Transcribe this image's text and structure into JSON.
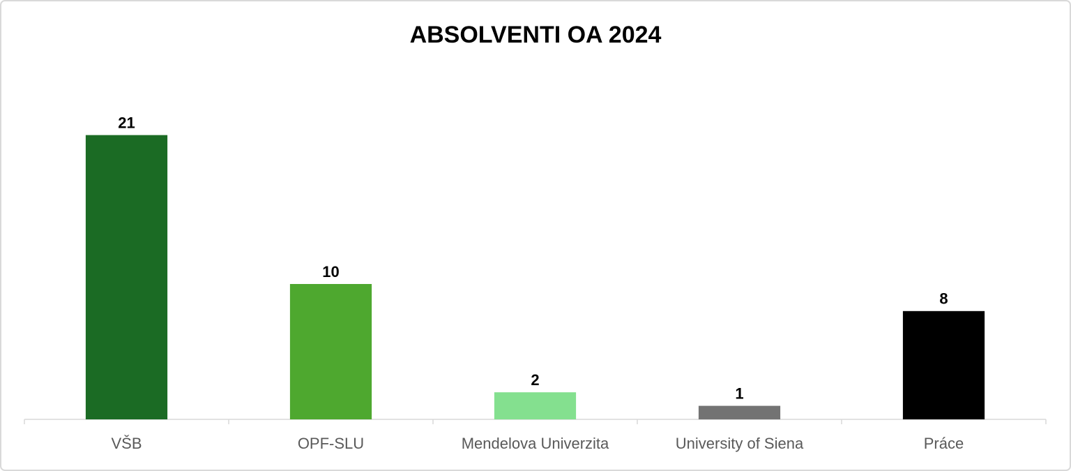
{
  "chart_data": {
    "type": "bar",
    "title": "ABSOLVENTI OA 2024",
    "categories": [
      "VŠB",
      "OPF-SLU",
      "Mendelova Univerzita",
      "University of Siena",
      "Práce"
    ],
    "values": [
      21,
      10,
      2,
      1,
      8
    ],
    "colors": [
      "#1b6b24",
      "#4ea82f",
      "#84e08f",
      "#737373",
      "#000000"
    ],
    "ylim": [
      0,
      25
    ]
  }
}
